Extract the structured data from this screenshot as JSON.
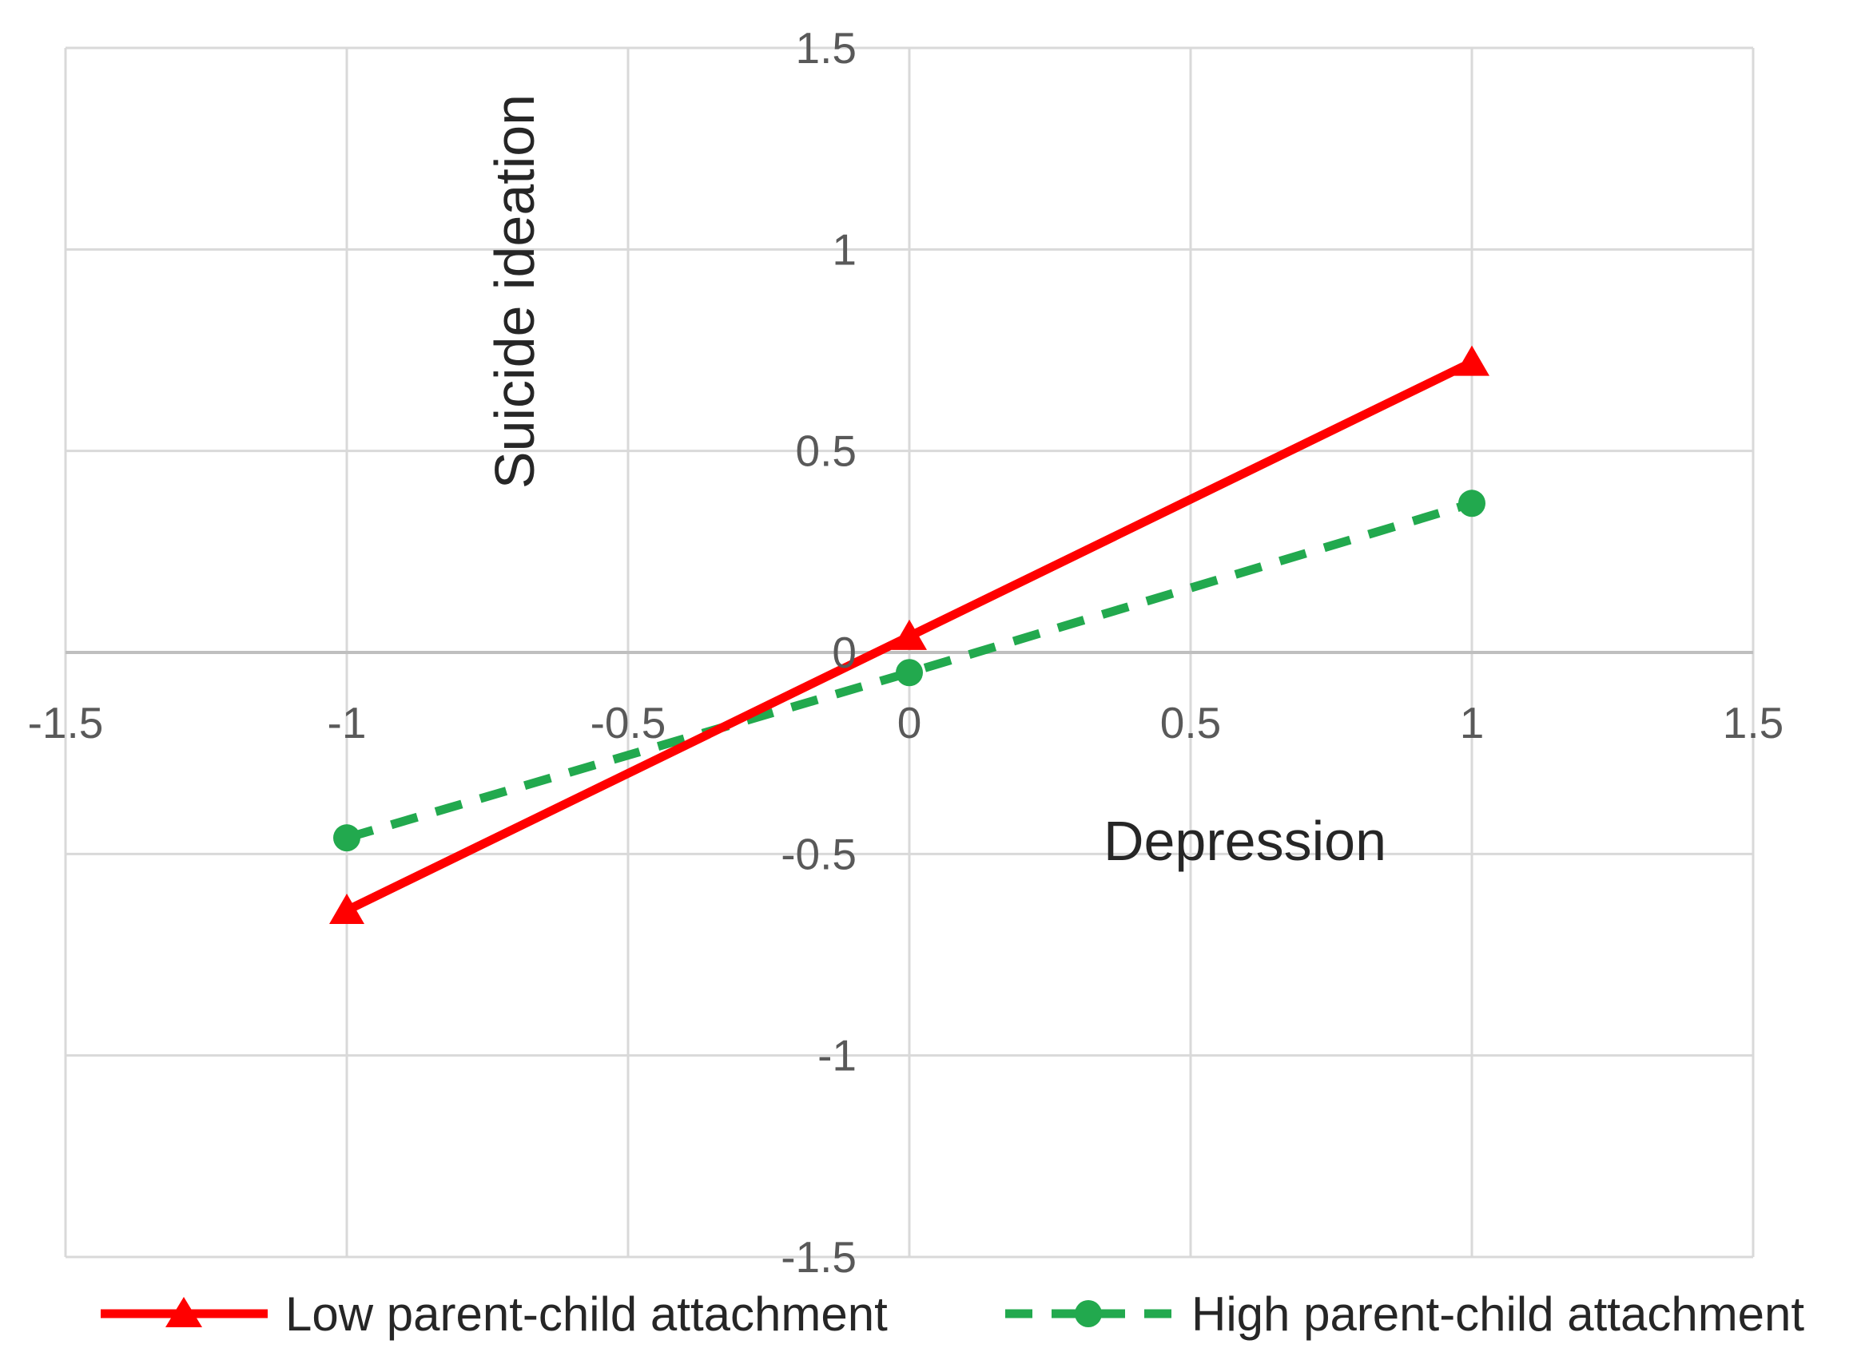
{
  "chart_data": {
    "type": "line",
    "title": "",
    "xlabel": "Depression",
    "ylabel": "Suicide ideation",
    "x": [
      -1,
      0,
      1
    ],
    "series": [
      {
        "name": "Low parent-child attachment",
        "values": [
          -0.64,
          0.04,
          0.72
        ],
        "color": "#FF0000",
        "marker": "triangle",
        "line_style": "solid"
      },
      {
        "name": "High parent-child attachment",
        "values": [
          -0.46,
          -0.05,
          0.37
        ],
        "color": "#22A94E",
        "marker": "circle",
        "line_style": "dashed"
      }
    ],
    "xlim": [
      -1.5,
      1.5
    ],
    "ylim": [
      -1.5,
      1.5
    ],
    "xticks": [
      -1.5,
      -1,
      -0.5,
      0,
      0.5,
      1,
      1.5
    ],
    "yticks": [
      1.5,
      1,
      0.5,
      0,
      -0.5,
      -1,
      -1.5
    ],
    "xtick_labels": [
      "-1.5",
      "-1",
      "-0.5",
      "0",
      "0.5",
      "1",
      "1.5"
    ],
    "ytick_labels": [
      "1.5",
      "1",
      "0.5",
      "0",
      "-0.5",
      "-1",
      "-1.5"
    ],
    "grid": true,
    "legend_position": "bottom",
    "colors": {
      "gridline": "#D9D9D9",
      "axis_line": "#BFBFBF",
      "tick_text": "#595959",
      "label_text": "#262626"
    }
  }
}
